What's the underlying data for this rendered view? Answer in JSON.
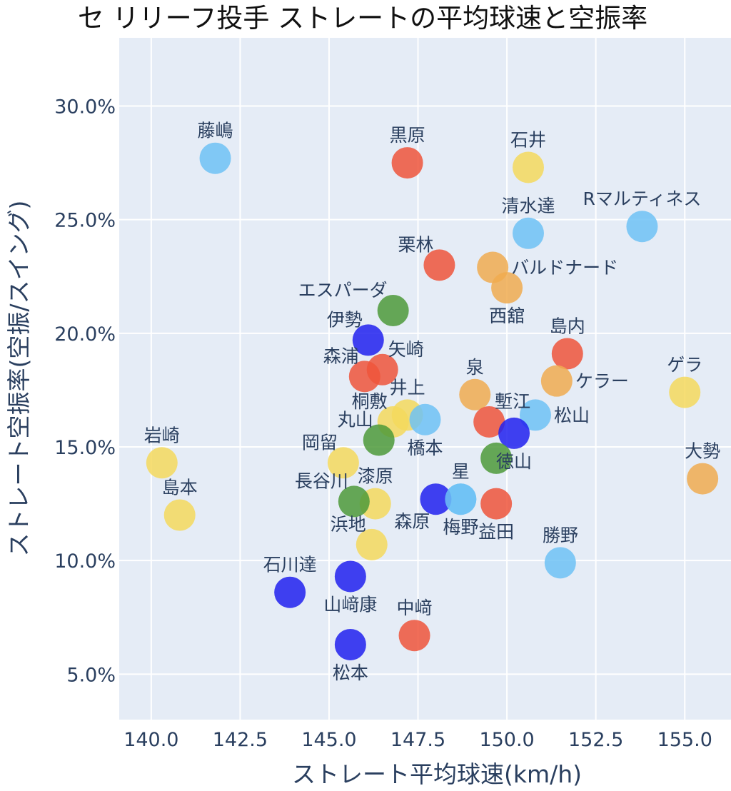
{
  "chart_data": {
    "type": "scatter",
    "title": "セ リリーフ投手 ストレートの平均球速と空振率",
    "xlabel": "ストレート平均球速(km/h)",
    "ylabel": "ストレート空振率(空振/スイング)",
    "xlim": [
      139.1,
      156.3
    ],
    "ylim": [
      3.0,
      33.0
    ],
    "xticks": [
      140.0,
      142.5,
      145.0,
      147.5,
      150.0,
      152.5,
      155.0
    ],
    "xtick_labels": [
      "140.0",
      "142.5",
      "145.0",
      "147.5",
      "150.0",
      "152.5",
      "155.0"
    ],
    "yticks": [
      5.0,
      10.0,
      15.0,
      20.0,
      25.0,
      30.0
    ],
    "ytick_labels": [
      "5.0%",
      "10.0%",
      "15.0%",
      "20.0%",
      "25.0%",
      "30.0%"
    ],
    "grid": true,
    "colors": {
      "red": "#EF553B",
      "yellow": "#F4D95D",
      "orange": "#F0AC50",
      "lightblue": "#6EC2F5",
      "blue": "#2121EE",
      "green": "#4E9A3A"
    },
    "points": [
      {
        "name": "藤嶋",
        "x": 141.8,
        "y": 27.7,
        "color": "lightblue",
        "label_pos": "top"
      },
      {
        "name": "黒原",
        "x": 147.2,
        "y": 27.5,
        "color": "red",
        "label_pos": "top"
      },
      {
        "name": "石井",
        "x": 150.6,
        "y": 27.3,
        "color": "yellow",
        "label_pos": "top"
      },
      {
        "name": "清水達",
        "x": 150.6,
        "y": 24.4,
        "color": "lightblue",
        "label_pos": "top"
      },
      {
        "name": "Rマルティネス",
        "x": 153.8,
        "y": 24.7,
        "color": "lightblue",
        "label_pos": "top"
      },
      {
        "name": "栗林",
        "x": 148.1,
        "y": 23.0,
        "color": "red",
        "label_pos": "top-left"
      },
      {
        "name": "バルドナード",
        "x": 149.6,
        "y": 22.9,
        "color": "orange",
        "label_pos": "right"
      },
      {
        "name": "西舘",
        "x": 150.0,
        "y": 22.0,
        "color": "orange",
        "label_pos": "bottom"
      },
      {
        "name": "エスパーダ",
        "x": 146.8,
        "y": 21.0,
        "color": "green",
        "label_pos": "top-left"
      },
      {
        "name": "伊勢",
        "x": 146.1,
        "y": 19.7,
        "color": "blue",
        "label_pos": "top-left"
      },
      {
        "name": "島内",
        "x": 151.7,
        "y": 19.1,
        "color": "red",
        "label_pos": "top"
      },
      {
        "name": "森浦",
        "x": 146.0,
        "y": 18.1,
        "color": "red",
        "label_pos": "top-left"
      },
      {
        "name": "矢崎",
        "x": 146.5,
        "y": 18.4,
        "color": "red",
        "label_pos": "top-right"
      },
      {
        "name": "泉",
        "x": 149.1,
        "y": 17.3,
        "color": "orange",
        "label_pos": "top"
      },
      {
        "name": "ケラー",
        "x": 151.4,
        "y": 17.9,
        "color": "orange",
        "label_pos": "right"
      },
      {
        "name": "ゲラ",
        "x": 155.0,
        "y": 17.4,
        "color": "yellow",
        "label_pos": "top"
      },
      {
        "name": "井上",
        "x": 147.2,
        "y": 16.4,
        "color": "yellow",
        "label_pos": "top"
      },
      {
        "name": "桐敷",
        "x": 146.8,
        "y": 16.1,
        "color": "yellow",
        "label_pos": "top-left"
      },
      {
        "name": "橋本",
        "x": 147.7,
        "y": 16.2,
        "color": "lightblue",
        "label_pos": "bottom"
      },
      {
        "name": "塹江",
        "x": 149.5,
        "y": 16.1,
        "color": "red",
        "label_pos": "top-right"
      },
      {
        "name": "松山",
        "x": 150.8,
        "y": 16.4,
        "color": "lightblue",
        "label_pos": "right"
      },
      {
        "name": "丸山",
        "x": 146.4,
        "y": 15.3,
        "color": "green",
        "label_pos": "top-left"
      },
      {
        "name": "徳山",
        "x": 150.2,
        "y": 15.6,
        "color": "blue",
        "label_pos": "bottom"
      },
      {
        "name": "岡留",
        "x": 145.4,
        "y": 14.3,
        "color": "yellow",
        "label_pos": "top-left"
      },
      {
        "name": "岩崎",
        "x": 140.3,
        "y": 14.3,
        "color": "yellow",
        "label_pos": "top"
      },
      {
        "name": "大勢",
        "x": 155.5,
        "y": 13.6,
        "color": "orange",
        "label_pos": "top"
      },
      {
        "name": "星",
        "x": 148.7,
        "y": 12.7,
        "color": "lightblue",
        "label_pos": "top"
      },
      {
        "name": "漆原",
        "x": 146.3,
        "y": 12.5,
        "color": "yellow",
        "label_pos": "top"
      },
      {
        "name": "長谷川",
        "x": 145.7,
        "y": 12.6,
        "color": "green",
        "label_pos": "top-left"
      },
      {
        "name": "島本",
        "x": 140.8,
        "y": 12.0,
        "color": "yellow",
        "label_pos": "top"
      },
      {
        "name": "森原",
        "x": 148.0,
        "y": 12.7,
        "color": "blue",
        "label_pos": "bottom-left"
      },
      {
        "name": "梅野",
        "x": 149.7,
        "y": 14.5,
        "color": "green",
        "label_pos": "none"
      },
      {
        "name": "益田",
        "x": 149.7,
        "y": 12.5,
        "color": "red",
        "label_pos": "bottom"
      },
      {
        "name": "梅野",
        "x": 148.7,
        "y": 12.7,
        "color": "lightblue",
        "label_pos": "bottom"
      },
      {
        "name": "浜地",
        "x": 146.2,
        "y": 10.7,
        "color": "yellow",
        "label_pos": "top-left"
      },
      {
        "name": "勝野",
        "x": 151.5,
        "y": 9.9,
        "color": "lightblue",
        "label_pos": "top"
      },
      {
        "name": "石川達",
        "x": 143.9,
        "y": 8.6,
        "color": "blue",
        "label_pos": "top"
      },
      {
        "name": "山﨑康",
        "x": 145.6,
        "y": 9.3,
        "color": "blue",
        "label_pos": "bottom"
      },
      {
        "name": "中﨑",
        "x": 147.4,
        "y": 6.7,
        "color": "red",
        "label_pos": "top"
      },
      {
        "name": "松本",
        "x": 145.6,
        "y": 6.3,
        "color": "blue",
        "label_pos": "bottom"
      }
    ]
  }
}
